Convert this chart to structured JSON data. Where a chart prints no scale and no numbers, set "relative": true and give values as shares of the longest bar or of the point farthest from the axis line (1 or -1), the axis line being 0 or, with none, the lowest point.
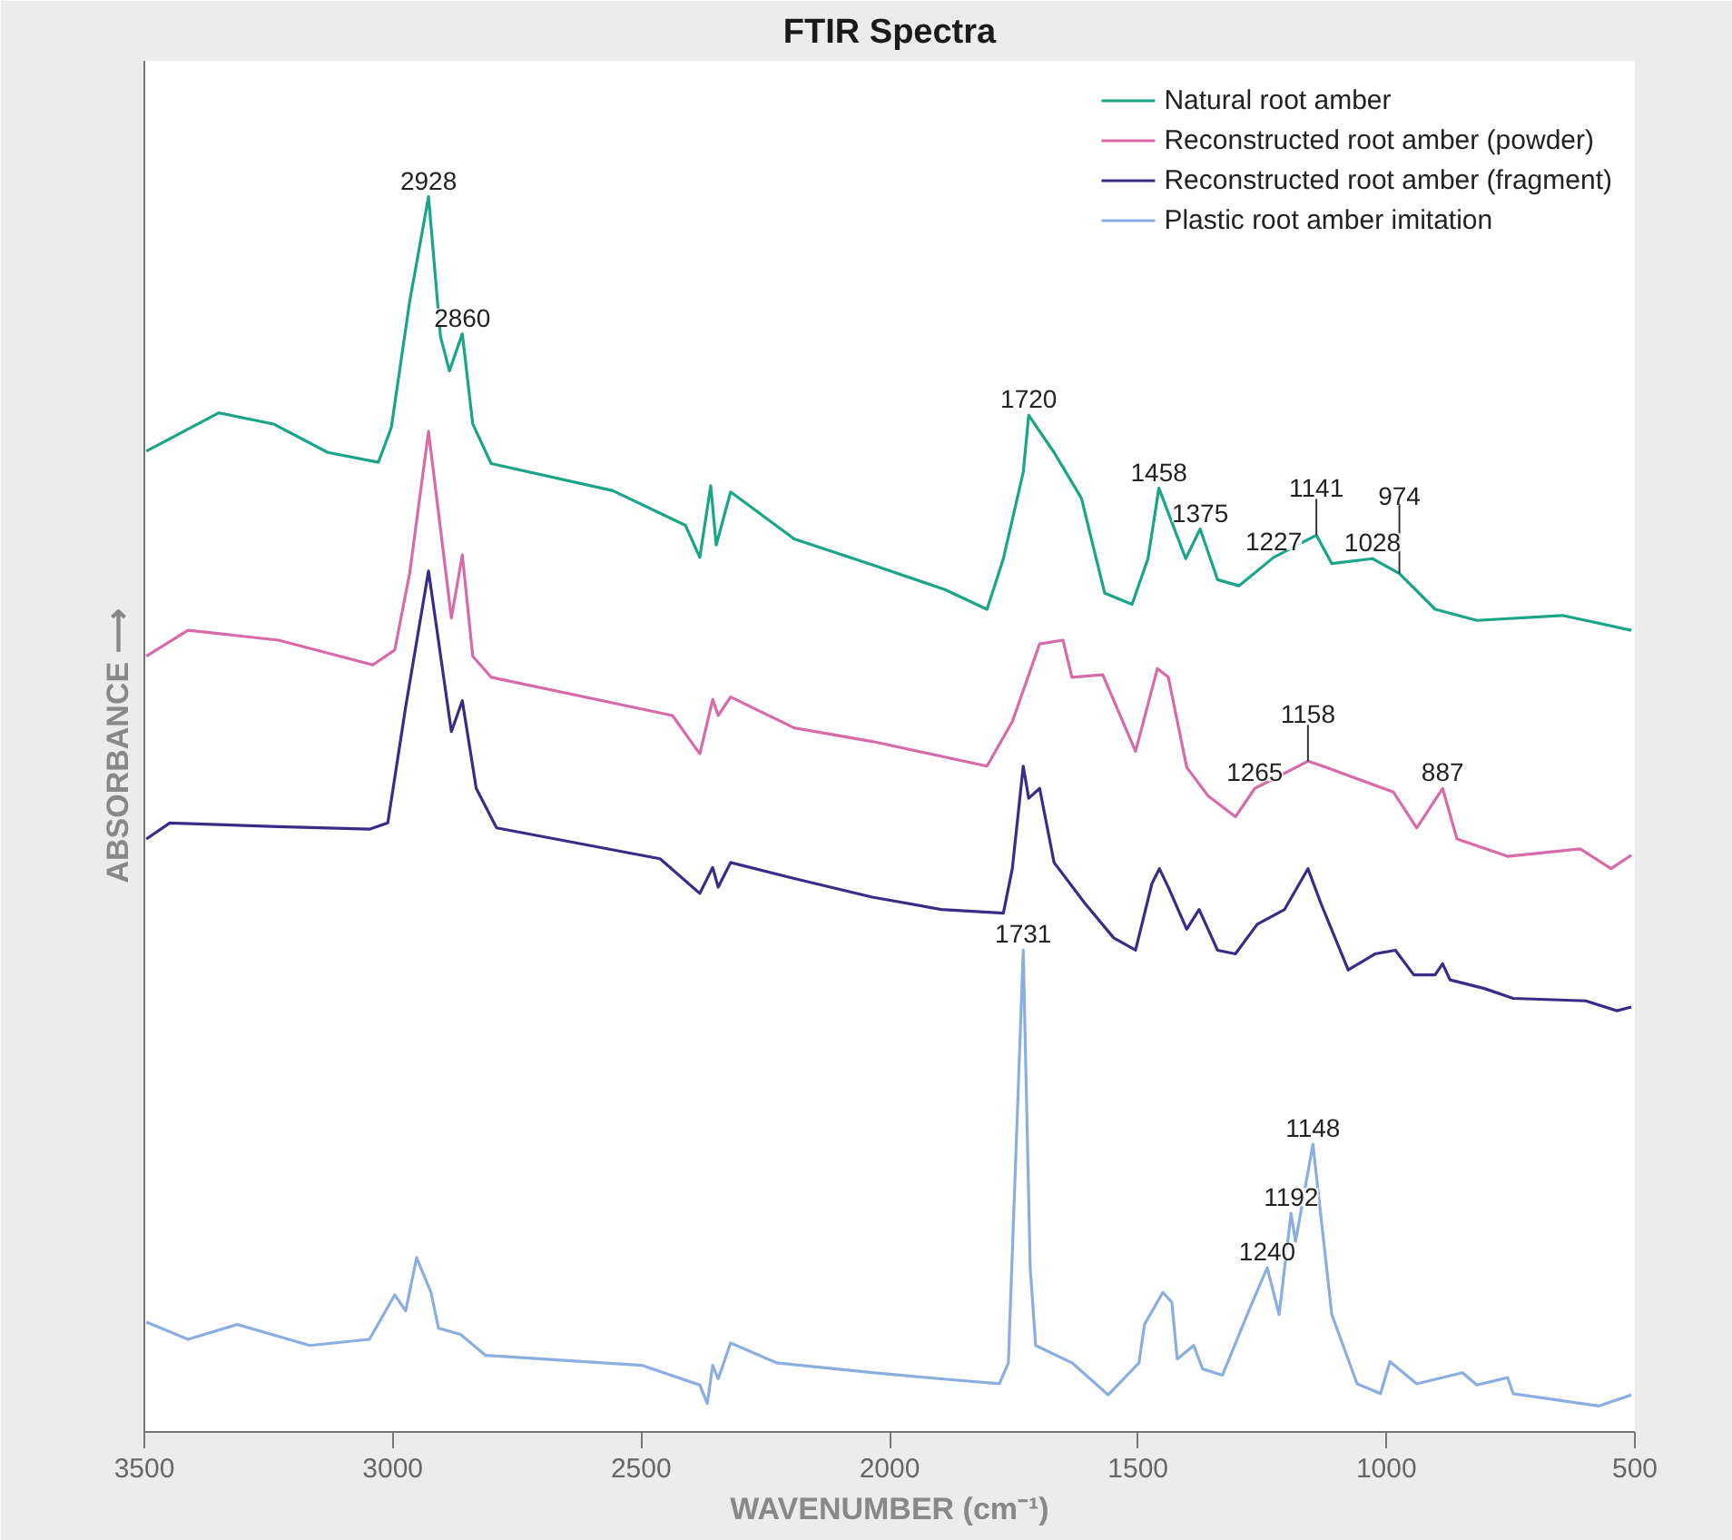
{
  "chart_data": {
    "type": "line",
    "title": "FTIR Spectra",
    "xlabel": "WAVENUMBER (cm⁻¹)",
    "ylabel": "ABSORBANCE ⟶",
    "relative": true,
    "xlim": [
      3500,
      500
    ],
    "xticks": [
      3500,
      3000,
      2500,
      2000,
      1500,
      1000,
      500
    ],
    "legend": "top right",
    "series": [
      {
        "name": "Natural root amber",
        "color": "#19a586",
        "x": [
          3496,
          3350,
          3240,
          3131,
          3029,
          3003,
          2966,
          2928,
          2904,
          2886,
          2860,
          2839,
          2802,
          2557,
          2411,
          2382,
          2360,
          2349,
          2320,
          2192,
          2035,
          1889,
          1804,
          1771,
          1731,
          1720,
          1669,
          1614,
          1567,
          1512,
          1480,
          1458,
          1404,
          1375,
          1340,
          1297,
          1227,
          1141,
          1110,
          1028,
          974,
          902,
          818,
          646,
          507
        ],
        "values": [
          0.794,
          0.825,
          0.816,
          0.793,
          0.785,
          0.813,
          0.915,
          1.0,
          0.887,
          0.859,
          0.889,
          0.816,
          0.784,
          0.762,
          0.734,
          0.708,
          0.766,
          0.718,
          0.761,
          0.723,
          0.702,
          0.682,
          0.666,
          0.707,
          0.777,
          0.823,
          0.793,
          0.756,
          0.679,
          0.67,
          0.707,
          0.764,
          0.707,
          0.731,
          0.69,
          0.685,
          0.708,
          0.726,
          0.703,
          0.707,
          0.695,
          0.666,
          0.657,
          0.661,
          0.649
        ]
      },
      {
        "name": "Reconstructed root amber (powder)",
        "color": "#d96aa8",
        "x": [
          3496,
          3412,
          3230,
          3040,
          2996,
          2966,
          2928,
          2882,
          2860,
          2839,
          2802,
          2437,
          2382,
          2356,
          2345,
          2320,
          2192,
          2035,
          1804,
          1753,
          1698,
          1651,
          1633,
          1571,
          1505,
          1461,
          1439,
          1402,
          1359,
          1304,
          1265,
          1158,
          1128,
          986,
          939,
          887,
          858,
          756,
          610,
          548,
          507
        ],
        "values": [
          0.628,
          0.649,
          0.641,
          0.621,
          0.633,
          0.695,
          0.81,
          0.659,
          0.71,
          0.628,
          0.611,
          0.58,
          0.549,
          0.593,
          0.58,
          0.595,
          0.57,
          0.559,
          0.539,
          0.575,
          0.638,
          0.641,
          0.611,
          0.613,
          0.551,
          0.618,
          0.611,
          0.538,
          0.515,
          0.498,
          0.521,
          0.543,
          0.539,
          0.518,
          0.489,
          0.521,
          0.48,
          0.466,
          0.472,
          0.456,
          0.467
        ]
      },
      {
        "name": "Reconstructed root amber (fragment)",
        "color": "#3d2a87",
        "x": [
          3496,
          3449,
          3230,
          3047,
          3010,
          2974,
          2928,
          2882,
          2860,
          2832,
          2791,
          2462,
          2382,
          2356,
          2345,
          2320,
          2192,
          2035,
          1896,
          1771,
          1753,
          1731,
          1720,
          1698,
          1669,
          1607,
          1549,
          1505,
          1472,
          1457,
          1439,
          1402,
          1377,
          1340,
          1304,
          1260,
          1205,
          1158,
          1132,
          1077,
          1023,
          982,
          945,
          902,
          887,
          872,
          803,
          745,
          599,
          536,
          507
        ],
        "values": [
          0.48,
          0.493,
          0.49,
          0.488,
          0.493,
          0.587,
          0.697,
          0.567,
          0.592,
          0.521,
          0.489,
          0.464,
          0.436,
          0.457,
          0.441,
          0.461,
          0.448,
          0.433,
          0.423,
          0.42,
          0.456,
          0.539,
          0.513,
          0.521,
          0.461,
          0.428,
          0.4,
          0.39,
          0.444,
          0.456,
          0.441,
          0.407,
          0.423,
          0.39,
          0.387,
          0.411,
          0.423,
          0.456,
          0.428,
          0.374,
          0.387,
          0.39,
          0.37,
          0.37,
          0.379,
          0.366,
          0.359,
          0.351,
          0.349,
          0.341,
          0.344
        ]
      },
      {
        "name": "Plastic root amber imitation",
        "color": "#8aaee0",
        "x": [
          3496,
          3412,
          3313,
          3167,
          3047,
          2996,
          2974,
          2952,
          2923,
          2908,
          2864,
          2813,
          2499,
          2382,
          2367,
          2356,
          2345,
          2320,
          2228,
          2035,
          1896,
          1779,
          1761,
          1731,
          1717,
          1706,
          1633,
          1560,
          1498,
          1487,
          1450,
          1432,
          1421,
          1388,
          1370,
          1330,
          1275,
          1240,
          1216,
          1192,
          1183,
          1148,
          1110,
          1059,
          1012,
          993,
          939,
          847,
          818,
          756,
          745,
          573,
          507
        ],
        "values": [
          0.089,
          0.075,
          0.087,
          0.07,
          0.075,
          0.111,
          0.098,
          0.141,
          0.113,
          0.084,
          0.079,
          0.062,
          0.054,
          0.038,
          0.023,
          0.054,
          0.043,
          0.072,
          0.056,
          0.048,
          0.043,
          0.039,
          0.056,
          0.39,
          0.133,
          0.07,
          0.056,
          0.03,
          0.056,
          0.087,
          0.113,
          0.105,
          0.059,
          0.07,
          0.051,
          0.046,
          0.1,
          0.133,
          0.095,
          0.177,
          0.154,
          0.233,
          0.095,
          0.039,
          0.031,
          0.057,
          0.039,
          0.048,
          0.038,
          0.044,
          0.031,
          0.021,
          0.03
        ]
      }
    ],
    "annotations": [
      {
        "text": "2928",
        "x": 2928,
        "y": 1.0
      },
      {
        "text": "2860",
        "x": 2860,
        "y": 0.889
      },
      {
        "text": "1720",
        "x": 1720,
        "y": 0.823
      },
      {
        "text": "1458",
        "x": 1458,
        "y": 0.764
      },
      {
        "text": "1375",
        "x": 1375,
        "y": 0.731
      },
      {
        "text": "1227",
        "x": 1227,
        "y": 0.708
      },
      {
        "text": "1141",
        "x": 1141,
        "y": 0.726
      },
      {
        "text": "1028",
        "x": 1028,
        "y": 0.707
      },
      {
        "text": "974",
        "x": 974,
        "y": 0.695
      },
      {
        "text": "1265",
        "x": 1265,
        "y": 0.521
      },
      {
        "text": "1158",
        "x": 1158,
        "y": 0.543
      },
      {
        "text": "887",
        "x": 887,
        "y": 0.521
      },
      {
        "text": "1731",
        "x": 1731,
        "y": 0.39
      },
      {
        "text": "1240",
        "x": 1240,
        "y": 0.133
      },
      {
        "text": "1192",
        "x": 1192,
        "y": 0.177
      },
      {
        "text": "1148",
        "x": 1148,
        "y": 0.233
      }
    ]
  }
}
